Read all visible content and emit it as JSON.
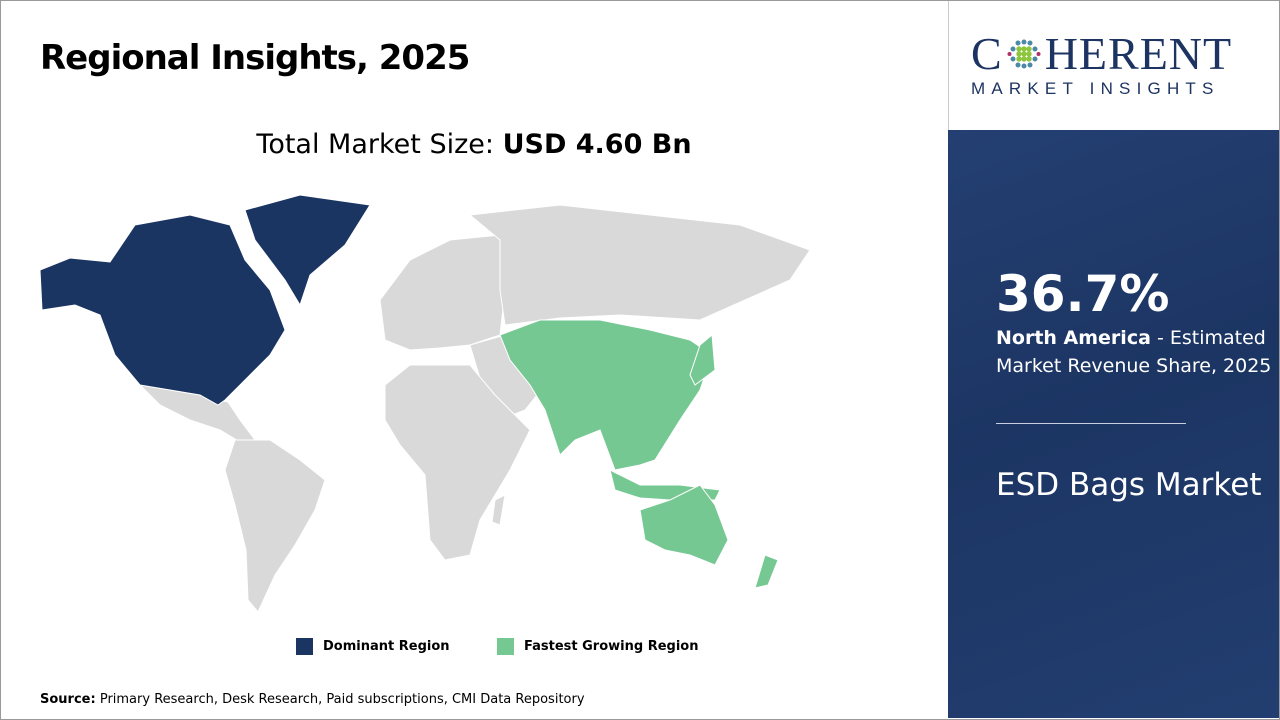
{
  "title": "Regional Insights, 2025",
  "market_size": {
    "label": "Total Market Size:",
    "value": "USD 4.60 Bn"
  },
  "legend": [
    {
      "label": "Dominant Region",
      "color": "#1b3563"
    },
    {
      "label": "Fastest Growing Region",
      "color": "#76c893"
    }
  ],
  "map": {
    "dominant_region": "North America",
    "fastest_growing_region": "Asia Pacific",
    "other_color": "#d9d9d9"
  },
  "source": {
    "label": "Source:",
    "text": "Primary Research, Desk Research, Paid subscriptions, CMI Data Repository"
  },
  "logo": {
    "top": "COHERENT",
    "bottom": "MARKET INSIGHTS"
  },
  "panel": {
    "share": "36.7%",
    "region": "North America",
    "description": " - Estimated Market Revenue Share, 2025",
    "market_name": "ESD Bags Market"
  }
}
